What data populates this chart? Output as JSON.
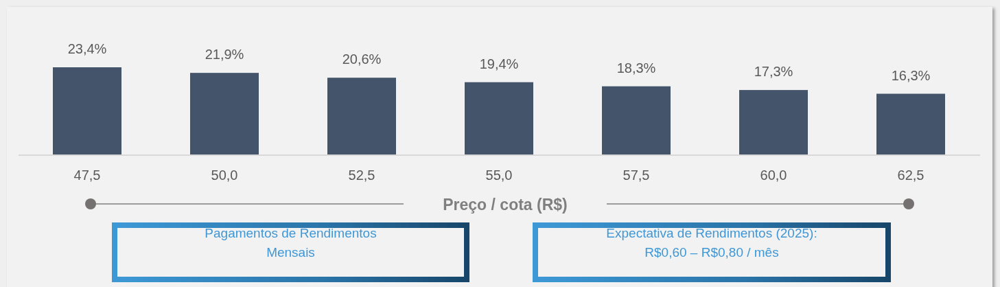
{
  "chart_data": {
    "type": "bar",
    "categories": [
      "47,5",
      "50,0",
      "52,5",
      "55,0",
      "57,5",
      "60,0",
      "62,5"
    ],
    "values": [
      23.4,
      21.9,
      20.6,
      19.4,
      18.3,
      17.3,
      16.3
    ],
    "color": "#44546a",
    "value_labels": [
      "23,4%",
      "21,9%",
      "20,6%",
      "19,4%",
      "18,3%",
      "17,3%",
      "16,3%"
    ],
    "xlabel": "Preço / cota (R$)",
    "annotations": [
      "Pagamentos de Rendimentos\nMensais",
      "Expectativa de Rendimentos (2025):\nR$0,60 – R$0,80 / mês"
    ]
  }
}
